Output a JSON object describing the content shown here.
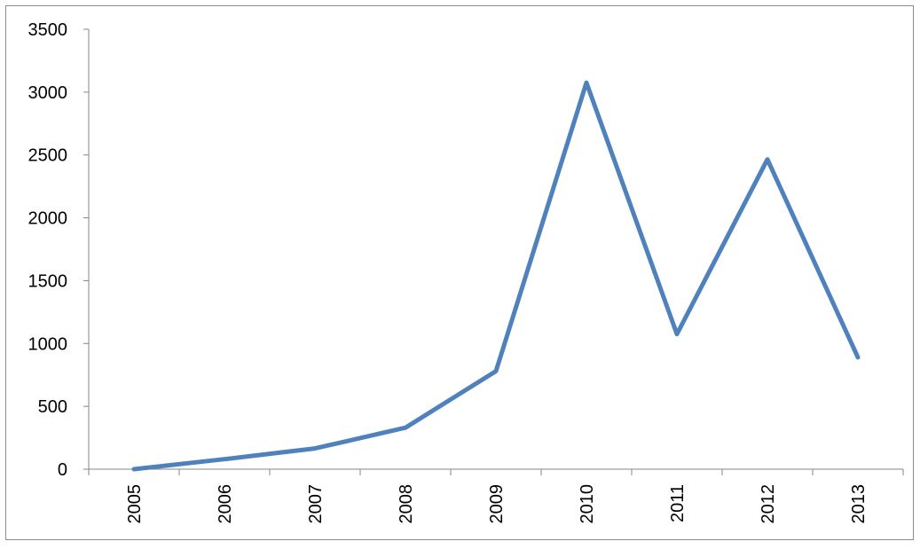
{
  "chart_data": {
    "type": "line",
    "title": "",
    "xlabel": "",
    "ylabel": "",
    "categories": [
      "2005",
      "2006",
      "2007",
      "2008",
      "2009",
      "2010",
      "2011",
      "2012",
      "2013"
    ],
    "series": [
      {
        "values": [
          0,
          80,
          165,
          330,
          780,
          3075,
          1075,
          2465,
          890
        ],
        "color": "#4f81bd"
      }
    ],
    "ylim": [
      0,
      3500
    ],
    "yticks": [
      "0",
      "500",
      "1000",
      "1500",
      "2000",
      "2500",
      "3000",
      "3500"
    ],
    "grid": false,
    "legend": "none",
    "axis_color": "#868686"
  }
}
